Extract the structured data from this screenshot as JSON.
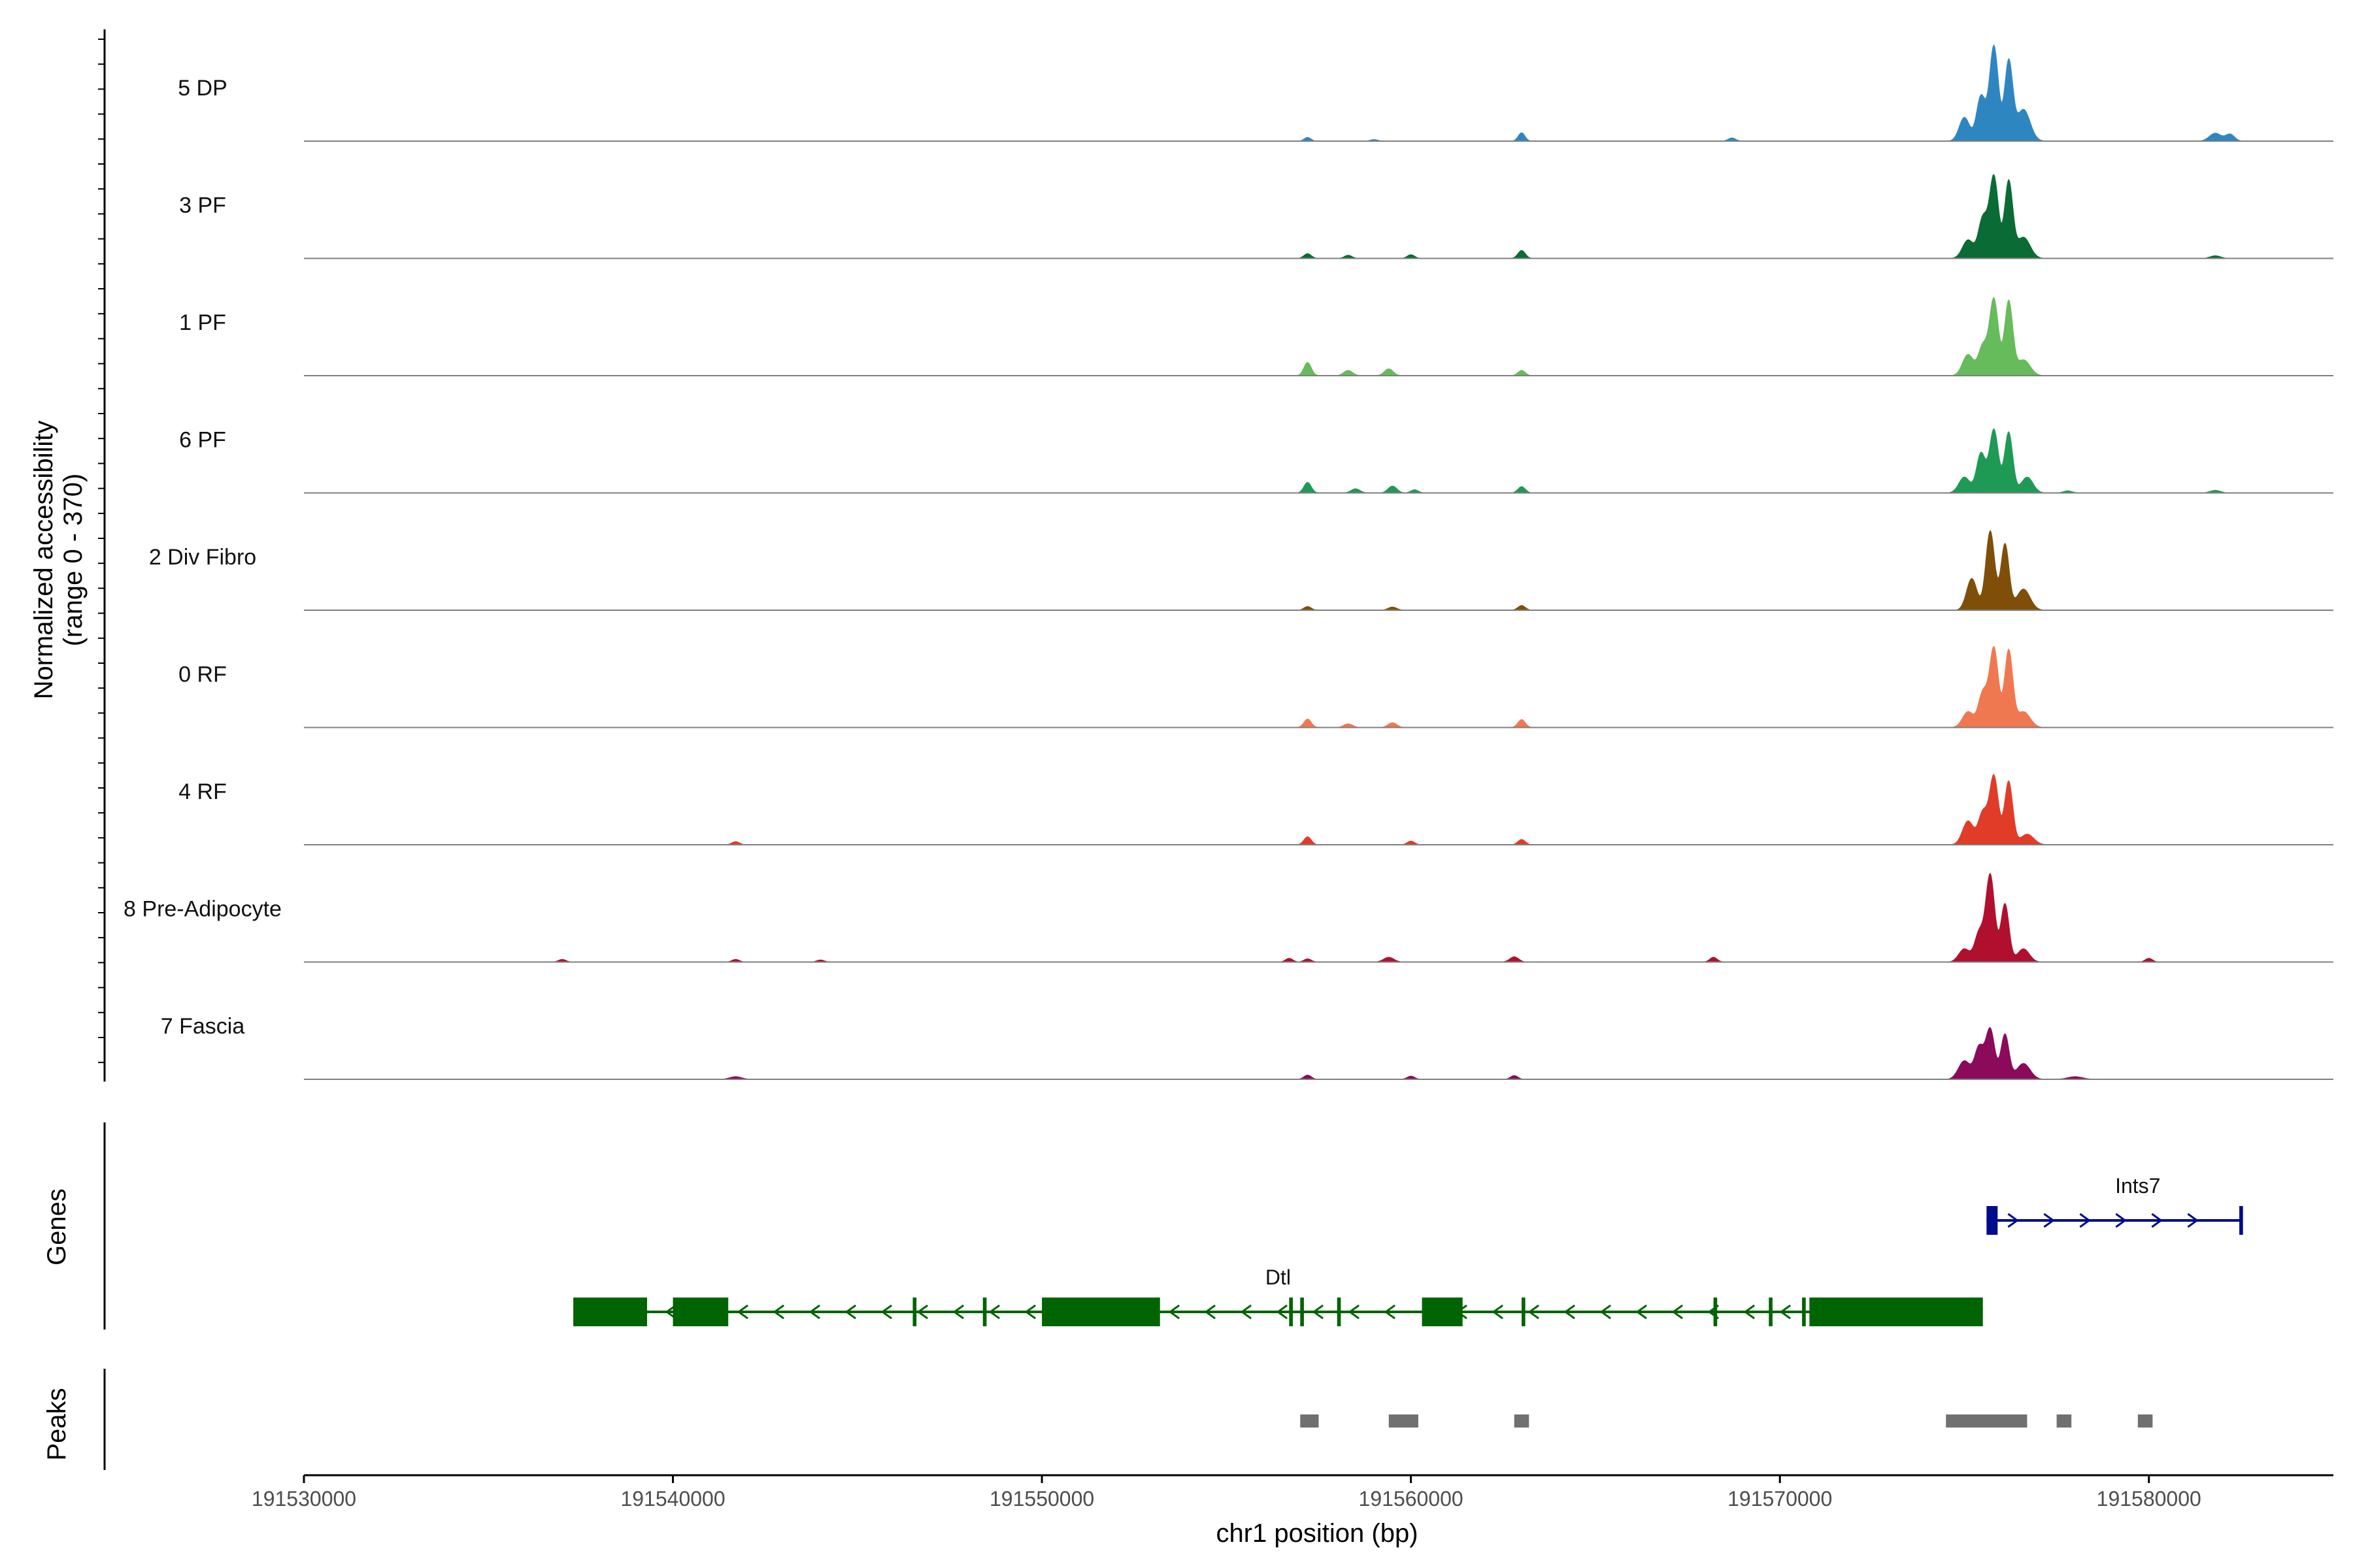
{
  "chart_data": {
    "type": "area",
    "x": {
      "label": "chr1 position (bp)",
      "range": [
        191530000,
        191585000
      ],
      "ticks": [
        191530000,
        191540000,
        191550000,
        191560000,
        191570000,
        191580000
      ],
      "tick_labels": [
        "191530000",
        "191540000",
        "191550000",
        "191560000",
        "191570000",
        "191580000"
      ]
    },
    "y": {
      "label": "Normalized accessibility",
      "label_line2": "(range 0 - 370)",
      "range": [
        0,
        370
      ]
    },
    "coverage_range_end": 191582500,
    "series": [
      {
        "name": "5 DP",
        "color": "#2E86C1",
        "peaks": [
          [
            191557200,
            14,
            90
          ],
          [
            191559000,
            6,
            100
          ],
          [
            191563000,
            32,
            90
          ],
          [
            191568700,
            12,
            100
          ],
          [
            191575000,
            90,
            140
          ],
          [
            191575450,
            170,
            120
          ],
          [
            191575800,
            360,
            120
          ],
          [
            191576200,
            300,
            110
          ],
          [
            191576600,
            120,
            180
          ],
          [
            191581800,
            30,
            160
          ],
          [
            191582200,
            26,
            120
          ]
        ]
      },
      {
        "name": "3 PF",
        "color": "#0B6B35",
        "peaks": [
          [
            191557200,
            18,
            100
          ],
          [
            191558300,
            12,
            100
          ],
          [
            191560000,
            14,
            100
          ],
          [
            191563000,
            30,
            100
          ],
          [
            191575100,
            70,
            150
          ],
          [
            191575500,
            150,
            120
          ],
          [
            191575800,
            310,
            120
          ],
          [
            191576200,
            290,
            110
          ],
          [
            191576600,
            80,
            180
          ],
          [
            191581800,
            10,
            140
          ]
        ]
      },
      {
        "name": "1 PF",
        "color": "#66BB5A",
        "peaks": [
          [
            191557200,
            50,
            100
          ],
          [
            191558300,
            20,
            120
          ],
          [
            191559400,
            26,
            120
          ],
          [
            191563000,
            20,
            100
          ],
          [
            191575100,
            80,
            150
          ],
          [
            191575500,
            110,
            120
          ],
          [
            191575800,
            290,
            120
          ],
          [
            191576200,
            280,
            110
          ],
          [
            191576600,
            60,
            180
          ]
        ]
      },
      {
        "name": "6 PF",
        "color": "#1E9A55",
        "peaks": [
          [
            191557200,
            40,
            100
          ],
          [
            191558500,
            16,
            120
          ],
          [
            191559500,
            26,
            120
          ],
          [
            191560100,
            12,
            100
          ],
          [
            191563000,
            24,
            100
          ],
          [
            191575000,
            60,
            150
          ],
          [
            191575450,
            150,
            120
          ],
          [
            191575800,
            240,
            120
          ],
          [
            191576200,
            230,
            110
          ],
          [
            191576700,
            60,
            160
          ],
          [
            191577800,
            8,
            120
          ],
          [
            191581800,
            10,
            140
          ]
        ]
      },
      {
        "name": "2 Div Fibro",
        "color": "#7F4F0A",
        "peaks": [
          [
            191557200,
            14,
            100
          ],
          [
            191559500,
            12,
            120
          ],
          [
            191563000,
            18,
            100
          ],
          [
            191575200,
            120,
            140
          ],
          [
            191575700,
            300,
            120
          ],
          [
            191576100,
            250,
            110
          ],
          [
            191576600,
            80,
            180
          ]
        ]
      },
      {
        "name": "0 RF",
        "color": "#F07850",
        "peaks": [
          [
            191557200,
            32,
            100
          ],
          [
            191558300,
            14,
            120
          ],
          [
            191559500,
            18,
            120
          ],
          [
            191563000,
            30,
            100
          ],
          [
            191575100,
            60,
            150
          ],
          [
            191575500,
            130,
            120
          ],
          [
            191575800,
            300,
            120
          ],
          [
            191576200,
            290,
            110
          ],
          [
            191576600,
            60,
            180
          ]
        ]
      },
      {
        "name": "4 RF",
        "color": "#E03C28",
        "peaks": [
          [
            191541700,
            12,
            100
          ],
          [
            191557200,
            30,
            100
          ],
          [
            191560000,
            14,
            100
          ],
          [
            191563000,
            20,
            100
          ],
          [
            191575100,
            90,
            150
          ],
          [
            191575500,
            120,
            120
          ],
          [
            191575800,
            260,
            120
          ],
          [
            191576200,
            240,
            110
          ],
          [
            191576700,
            40,
            180
          ]
        ]
      },
      {
        "name": "8 Pre-Adipocyte",
        "color": "#B0102E",
        "peaks": [
          [
            191537000,
            10,
            100
          ],
          [
            191541700,
            10,
            100
          ],
          [
            191544000,
            8,
            100
          ],
          [
            191556700,
            14,
            100
          ],
          [
            191557200,
            12,
            100
          ],
          [
            191559400,
            18,
            140
          ],
          [
            191562800,
            20,
            120
          ],
          [
            191568200,
            18,
            100
          ],
          [
            191575000,
            50,
            150
          ],
          [
            191575400,
            110,
            120
          ],
          [
            191575700,
            330,
            120
          ],
          [
            191576100,
            220,
            110
          ],
          [
            191576600,
            50,
            160
          ],
          [
            191580000,
            14,
            100
          ]
        ]
      },
      {
        "name": "7 Fascia",
        "color": "#8B0A5A",
        "peaks": [
          [
            191541700,
            10,
            160
          ],
          [
            191557200,
            16,
            100
          ],
          [
            191560000,
            12,
            100
          ],
          [
            191562800,
            14,
            100
          ],
          [
            191575000,
            70,
            160
          ],
          [
            191575400,
            120,
            120
          ],
          [
            191575700,
            190,
            120
          ],
          [
            191576100,
            170,
            110
          ],
          [
            191576600,
            60,
            180
          ],
          [
            191578000,
            10,
            200
          ]
        ]
      }
    ],
    "genes_title": "Genes",
    "genes": [
      {
        "name": "Ints7",
        "strand": "+",
        "start": 191575600,
        "end": 191582500,
        "color": "#000C8B",
        "exons": [
          [
            191575600,
            191575900
          ],
          [
            191582450,
            191582550
          ]
        ]
      },
      {
        "name": "Dtl",
        "strand": "-",
        "start": 191537300,
        "end": 191575500,
        "color": "#006400",
        "exons": [
          [
            191537300,
            191539300
          ],
          [
            191540000,
            191541500
          ],
          [
            191546500,
            191546600
          ],
          [
            191548400,
            191548500
          ],
          [
            191550000,
            191553200
          ],
          [
            191556700,
            191556800
          ],
          [
            191557000,
            191557100
          ],
          [
            191558000,
            191558100
          ],
          [
            191560300,
            191561400
          ],
          [
            191563000,
            191563100
          ],
          [
            191568200,
            191568300
          ],
          [
            191569700,
            191569800
          ],
          [
            191570600,
            191570700
          ],
          [
            191570800,
            191575500
          ]
        ]
      }
    ],
    "peaks_title": "Peaks",
    "peaks_color": "#707070",
    "peak_regions": [
      [
        191557000,
        191557500
      ],
      [
        191559400,
        191560200
      ],
      [
        191562800,
        191563200
      ],
      [
        191574500,
        191576700
      ],
      [
        191577500,
        191577900
      ],
      [
        191579700,
        191580100
      ]
    ]
  }
}
